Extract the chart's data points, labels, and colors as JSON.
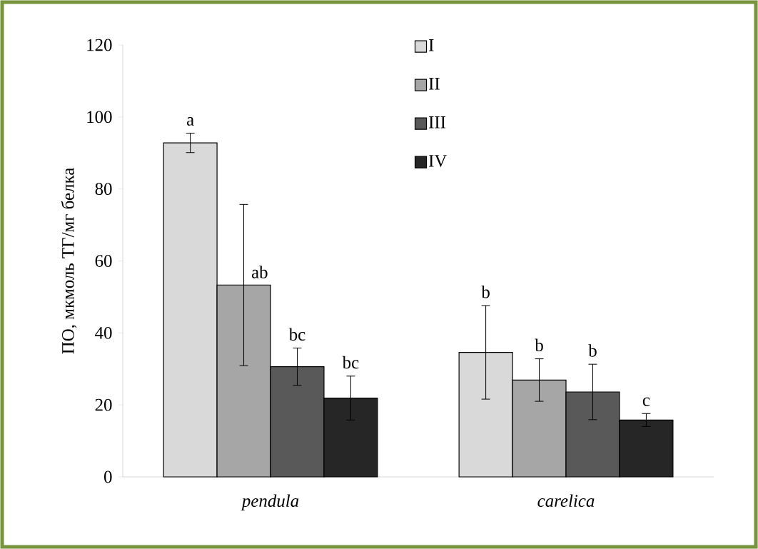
{
  "chart_data": {
    "type": "bar",
    "ylabel": "ПО, мкмоль ТГ/мг белка",
    "categories": [
      "pendula",
      "carelica"
    ],
    "series": [
      {
        "name": "I",
        "color": "#d9d9d9",
        "values": [
          92.8,
          34.6
        ],
        "errors": [
          2.7,
          13
        ],
        "value_labels": [
          "a",
          "b"
        ]
      },
      {
        "name": "II",
        "color": "#a6a6a6",
        "values": [
          53.3,
          26.9
        ],
        "errors": [
          22.4,
          5.9
        ],
        "value_labels": [
          "ab",
          "b"
        ]
      },
      {
        "name": "III",
        "color": "#595959",
        "values": [
          30.6,
          23.6
        ],
        "errors": [
          5.2,
          7.7
        ],
        "value_labels": [
          "bc",
          "b"
        ]
      },
      {
        "name": "IV",
        "color": "#262626",
        "values": [
          21.9,
          15.8
        ],
        "errors": [
          6.1,
          1.8
        ],
        "value_labels": [
          "bc",
          "c"
        ]
      }
    ],
    "ylim": [
      0,
      120
    ],
    "yticks": [
      0,
      20,
      40,
      60,
      80,
      100,
      120
    ],
    "grid": false,
    "legend": "top"
  }
}
